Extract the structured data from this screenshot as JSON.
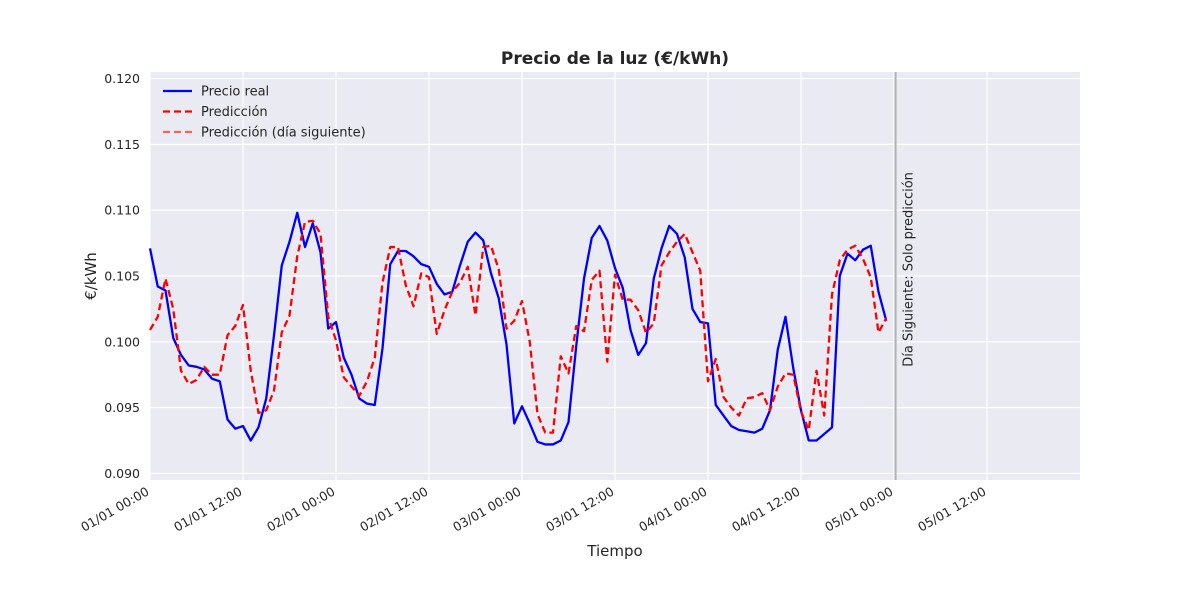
{
  "chart_data": {
    "type": "line",
    "title": "Precio de la luz (€/kWh)",
    "xlabel": "Tiempo",
    "ylabel": "€/kWh",
    "x_unit": "hours",
    "xlim": [
      0,
      120
    ],
    "ylim": [
      0.0895,
      0.1205
    ],
    "y_ticks": [
      0.09,
      0.095,
      0.1,
      0.105,
      0.11,
      0.115,
      0.12
    ],
    "x_ticks": [
      {
        "x": 0,
        "label": "01/01 00:00"
      },
      {
        "x": 12,
        "label": "01/01 12:00"
      },
      {
        "x": 24,
        "label": "02/01 00:00"
      },
      {
        "x": 36,
        "label": "02/01 12:00"
      },
      {
        "x": 48,
        "label": "03/01 00:00"
      },
      {
        "x": 60,
        "label": "03/01 12:00"
      },
      {
        "x": 72,
        "label": "04/01 00:00"
      },
      {
        "x": 84,
        "label": "04/01 12:00"
      },
      {
        "x": 96,
        "label": "05/01 00:00"
      },
      {
        "x": 108,
        "label": "05/01 12:00"
      }
    ],
    "grid": true,
    "legend_position": "top-left",
    "vline": {
      "x": 96.2,
      "label": "Día Siguiente: Solo predicción",
      "color": "#b0b0b0"
    },
    "series": [
      {
        "name": "Precio real",
        "color": "#0000ff",
        "style": "solid",
        "x": [
          0,
          1,
          2,
          3,
          4,
          5,
          6,
          7,
          8,
          9,
          10,
          11,
          12,
          13,
          14,
          15,
          16,
          17,
          18,
          19,
          20,
          21,
          22,
          23,
          24,
          25,
          26,
          27,
          28,
          29,
          30,
          31,
          32,
          33,
          34,
          35,
          36,
          37,
          38,
          39,
          40,
          41,
          42,
          43,
          44,
          45,
          46,
          47,
          48,
          49,
          50,
          51,
          52,
          53,
          54,
          55,
          56,
          57,
          58,
          59,
          60,
          61,
          62,
          63,
          64,
          65,
          66,
          67,
          68,
          69,
          70,
          71,
          72,
          73,
          74,
          75,
          76,
          77,
          78,
          79,
          80,
          81,
          82,
          83,
          84,
          85,
          86,
          87,
          88,
          89,
          90,
          91,
          92,
          93,
          94,
          95
        ],
        "y": [
          0.1071,
          0.1042,
          0.1039,
          0.1003,
          0.099,
          0.0982,
          0.0981,
          0.0979,
          0.0972,
          0.097,
          0.0941,
          0.0934,
          0.0936,
          0.0925,
          0.0935,
          0.0957,
          0.1005,
          0.1058,
          0.1076,
          0.1098,
          0.1072,
          0.109,
          0.1068,
          0.101,
          0.1015,
          0.0988,
          0.0975,
          0.0957,
          0.0953,
          0.0952,
          0.0995,
          0.1059,
          0.1069,
          0.1069,
          0.1065,
          0.1059,
          0.1057,
          0.1044,
          0.1036,
          0.1038,
          0.1058,
          0.1076,
          0.1083,
          0.1077,
          0.1052,
          0.1033,
          0.0998,
          0.0938,
          0.0951,
          0.0938,
          0.0924,
          0.0922,
          0.0922,
          0.0925,
          0.0939,
          0.0997,
          0.1048,
          0.1079,
          0.1088,
          0.1077,
          0.1056,
          0.1041,
          0.1009,
          0.099,
          0.0999,
          0.1048,
          0.1071,
          0.1088,
          0.1082,
          0.1064,
          0.1025,
          0.1015,
          0.1014,
          0.0952,
          0.0944,
          0.0936,
          0.0933,
          0.0932,
          0.0931,
          0.0934,
          0.0948,
          0.0994,
          0.1019,
          0.098,
          0.0948,
          0.0925,
          0.0925,
          0.093,
          0.0935,
          0.105,
          0.1067,
          0.1062,
          0.107,
          0.1073,
          0.1038,
          0.1016
        ]
      },
      {
        "name": "Predicción",
        "color": "#ff0000",
        "style": "dashed",
        "x": [
          0,
          1,
          2,
          3,
          4,
          5,
          6,
          7,
          8,
          9,
          10,
          11,
          12,
          13,
          14,
          15,
          16,
          17,
          18,
          19,
          20,
          21,
          22,
          23,
          24,
          25,
          26,
          27,
          28,
          29,
          30,
          31,
          32,
          33,
          34,
          35,
          36,
          37,
          38,
          39,
          40,
          41,
          42,
          43,
          44,
          45,
          46,
          47,
          48,
          49,
          50,
          51,
          52,
          53,
          54,
          55,
          56,
          57,
          58,
          59,
          60,
          61,
          62,
          63,
          64,
          65,
          66,
          67,
          68,
          69,
          70,
          71,
          72,
          73,
          74,
          75,
          76,
          77,
          78,
          79,
          80,
          81,
          82,
          83,
          84,
          85,
          86,
          87,
          88,
          89,
          90,
          91,
          92,
          93,
          94,
          95
        ],
        "y": [
          0.1009,
          0.1019,
          0.1048,
          0.1025,
          0.0978,
          0.0968,
          0.0971,
          0.0981,
          0.0975,
          0.0975,
          0.1005,
          0.1012,
          0.1028,
          0.0978,
          0.0946,
          0.0948,
          0.0963,
          0.1007,
          0.102,
          0.1065,
          0.1091,
          0.1092,
          0.1082,
          0.1019,
          0.1001,
          0.0973,
          0.0966,
          0.0959,
          0.097,
          0.0988,
          0.1045,
          0.1072,
          0.1072,
          0.1043,
          0.1027,
          0.1052,
          0.1049,
          0.1006,
          0.1024,
          0.1038,
          0.1045,
          0.1057,
          0.102,
          0.1072,
          0.1073,
          0.1055,
          0.101,
          0.1016,
          0.1031,
          0.1,
          0.0945,
          0.0931,
          0.0931,
          0.0989,
          0.0976,
          0.1012,
          0.1008,
          0.1047,
          0.1054,
          0.0985,
          0.1051,
          0.1032,
          0.1032,
          0.1024,
          0.1007,
          0.1014,
          0.1058,
          0.1068,
          0.1076,
          0.1082,
          0.1068,
          0.1054,
          0.097,
          0.0987,
          0.0958,
          0.095,
          0.0944,
          0.0957,
          0.0958,
          0.0961,
          0.0948,
          0.0966,
          0.0976,
          0.0975,
          0.0947,
          0.0933,
          0.0978,
          0.0944,
          0.1036,
          0.1062,
          0.107,
          0.1073,
          0.1063,
          0.1049,
          0.1007,
          0.1018
        ]
      },
      {
        "name": "Predicción (día siguiente)",
        "color": "#f0645a",
        "style": "dashed",
        "x": [],
        "y": []
      }
    ]
  }
}
